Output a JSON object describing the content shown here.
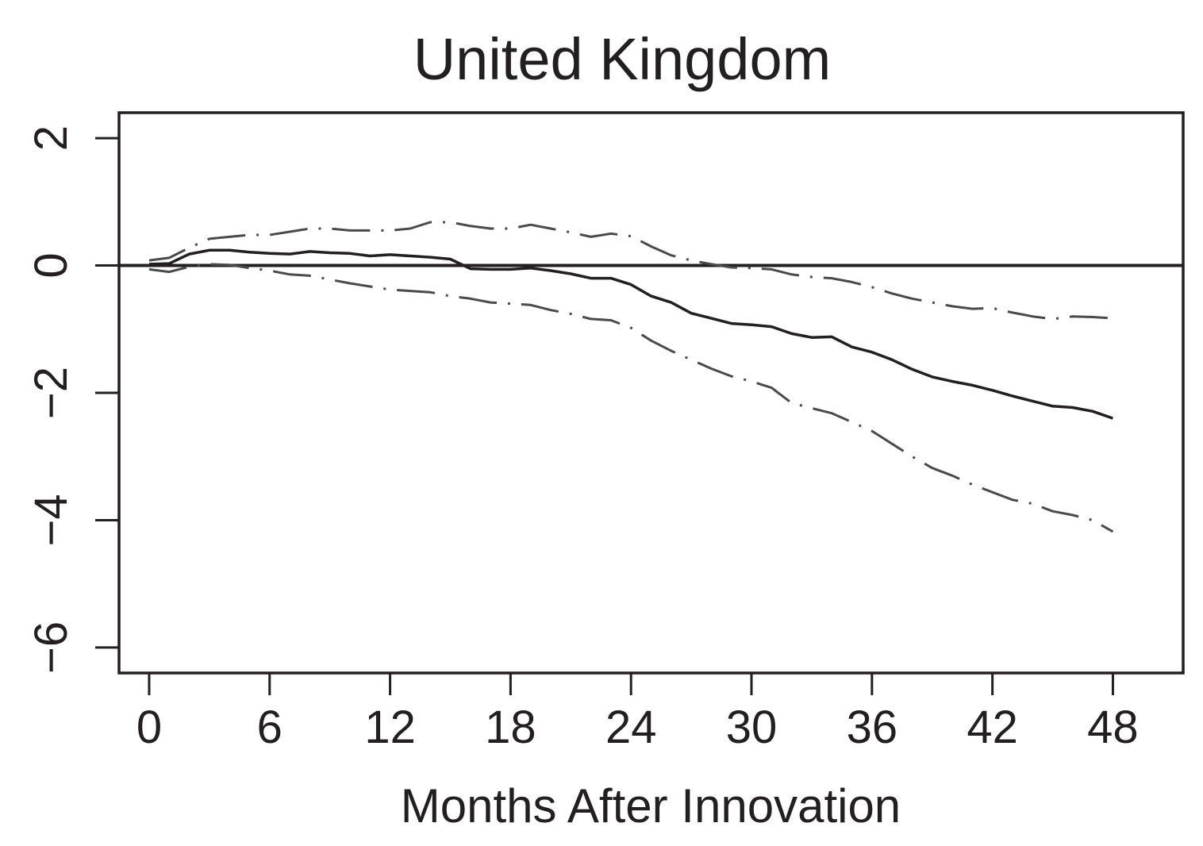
{
  "chart_data": {
    "type": "line",
    "title": "United Kingdom",
    "xlabel": "Months After Innovation",
    "ylabel": "",
    "xlim": [
      -1.5,
      51.5
    ],
    "ylim": [
      -6.4,
      2.4
    ],
    "x_ticks": [
      0,
      6,
      12,
      18,
      24,
      30,
      36,
      42,
      48
    ],
    "y_ticks": [
      -6,
      -4,
      -2,
      0,
      2
    ],
    "y_tick_labels": [
      "−6",
      "−4",
      "−2",
      "0",
      "2"
    ],
    "reference_line": 0,
    "grid": false,
    "legend": "none",
    "colors": {
      "point": "#231f20",
      "bands": "#4a4a4a",
      "frame": "#231f20"
    },
    "x": [
      0,
      1,
      2,
      3,
      4,
      5,
      6,
      7,
      8,
      9,
      10,
      11,
      12,
      13,
      14,
      15,
      16,
      17,
      18,
      19,
      20,
      21,
      22,
      23,
      24,
      25,
      26,
      27,
      28,
      29,
      30,
      31,
      32,
      33,
      34,
      35,
      36,
      37,
      38,
      39,
      40,
      41,
      42,
      43,
      44,
      45,
      46,
      47,
      48
    ],
    "series": [
      {
        "style": "solid",
        "values": [
          0.02,
          0.03,
          0.18,
          0.24,
          0.24,
          0.21,
          0.19,
          0.18,
          0.22,
          0.2,
          0.19,
          0.15,
          0.17,
          0.15,
          0.13,
          0.1,
          -0.05,
          -0.06,
          -0.06,
          -0.04,
          -0.08,
          -0.13,
          -0.2,
          -0.2,
          -0.3,
          -0.48,
          -0.58,
          -0.75,
          -0.83,
          -0.91,
          -0.93,
          -0.96,
          -1.07,
          -1.13,
          -1.12,
          -1.28,
          -1.36,
          -1.48,
          -1.63,
          -1.75,
          -1.82,
          -1.88,
          -1.96,
          -2.05,
          -2.13,
          -2.21,
          -2.23,
          -2.29,
          -2.4
        ]
      },
      {
        "style": "dash-dot",
        "values": [
          0.08,
          0.12,
          0.28,
          0.42,
          0.45,
          0.48,
          0.48,
          0.53,
          0.58,
          0.58,
          0.55,
          0.55,
          0.55,
          0.58,
          0.68,
          0.68,
          0.62,
          0.58,
          0.58,
          0.64,
          0.58,
          0.52,
          0.45,
          0.5,
          0.46,
          0.3,
          0.16,
          0.08,
          0.02,
          -0.03,
          -0.04,
          -0.06,
          -0.14,
          -0.18,
          -0.2,
          -0.26,
          -0.34,
          -0.44,
          -0.52,
          -0.58,
          -0.64,
          -0.68,
          -0.67,
          -0.74,
          -0.8,
          -0.84,
          -0.8,
          -0.81,
          -0.83
        ]
      },
      {
        "style": "dash-dot",
        "values": [
          -0.06,
          -0.1,
          -0.02,
          0.02,
          0.01,
          -0.04,
          -0.08,
          -0.14,
          -0.16,
          -0.22,
          -0.28,
          -0.33,
          -0.38,
          -0.4,
          -0.42,
          -0.48,
          -0.52,
          -0.58,
          -0.6,
          -0.62,
          -0.7,
          -0.76,
          -0.84,
          -0.86,
          -0.98,
          -1.18,
          -1.34,
          -1.48,
          -1.62,
          -1.74,
          -1.82,
          -1.92,
          -2.16,
          -2.24,
          -2.32,
          -2.46,
          -2.6,
          -2.8,
          -3.0,
          -3.18,
          -3.3,
          -3.44,
          -3.56,
          -3.68,
          -3.74,
          -3.86,
          -3.92,
          -4.0,
          -4.18
        ]
      }
    ]
  }
}
